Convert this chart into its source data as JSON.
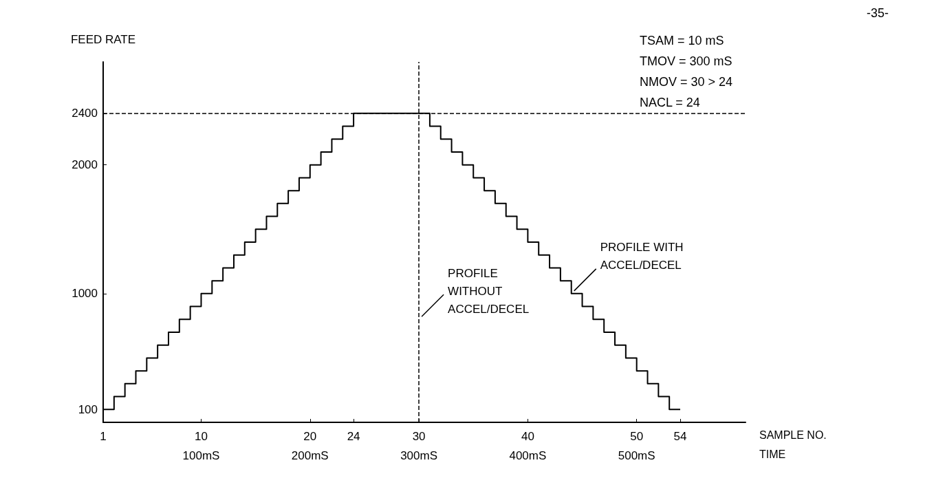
{
  "chart_data": {
    "type": "step",
    "ylabel": "FEED RATE",
    "xlabel": "SAMPLE NO.",
    "x2label": "TIME",
    "x": [
      1,
      2,
      3,
      4,
      5,
      6,
      7,
      8,
      9,
      10,
      11,
      12,
      13,
      14,
      15,
      16,
      17,
      18,
      19,
      20,
      21,
      22,
      23,
      24,
      25,
      26,
      27,
      28,
      29,
      30,
      31,
      32,
      33,
      34,
      35,
      36,
      37,
      38,
      39,
      40,
      41,
      42,
      43,
      44,
      45,
      46,
      47,
      48,
      49,
      50,
      51,
      52,
      53,
      54
    ],
    "values": [
      100,
      200,
      300,
      400,
      500,
      600,
      700,
      800,
      900,
      1000,
      1100,
      1200,
      1300,
      1400,
      1500,
      1600,
      1700,
      1800,
      1900,
      2000,
      2100,
      2200,
      2300,
      2400,
      2400,
      2400,
      2400,
      2400,
      2400,
      2400,
      2300,
      2200,
      2100,
      2000,
      1900,
      1800,
      1700,
      1600,
      1500,
      1400,
      1300,
      1200,
      1100,
      1000,
      900,
      800,
      700,
      600,
      500,
      400,
      300,
      200,
      100,
      100
    ],
    "color": "#000000",
    "line_style": "solid",
    "marker": "none",
    "grid": false,
    "xlim": [
      1,
      60
    ],
    "xticks": [
      1,
      10,
      20,
      24,
      30,
      40,
      50,
      54
    ],
    "x2lim": [
      10,
      600
    ],
    "x2ticks": [
      {
        "value": 100,
        "label": "100mS"
      },
      {
        "value": 200,
        "label": "200mS"
      },
      {
        "value": 300,
        "label": "300mS"
      },
      {
        "value": 400,
        "label": "400mS"
      },
      {
        "value": 500,
        "label": "500mS"
      }
    ],
    "ylim": [
      0,
      2800
    ],
    "yticks": [
      100,
      1000,
      2000,
      2400
    ],
    "ref_lines": [
      {
        "axis": "y",
        "value": 2400,
        "line_style": "dashed"
      },
      {
        "axis": "x",
        "value": 30,
        "line_style": "dashed"
      }
    ],
    "annotations": [
      "-35-",
      "TSAM = 10 mS",
      "TMOV = 300 mS",
      "NMOV = 30 > 24",
      "NACL = 24",
      {
        "text": "PROFILE WITH\nACCEL/DECEL",
        "x": 44,
        "y": 1000
      },
      {
        "text": "PROFILE\nWITHOUT\nACCEL/DECEL",
        "x": 30,
        "y": 800
      }
    ]
  }
}
